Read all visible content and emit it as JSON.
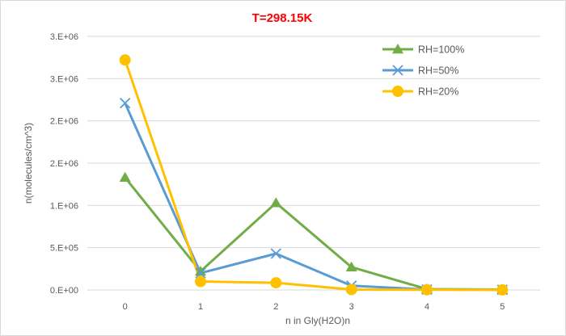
{
  "chart_data": {
    "type": "line",
    "title": "T=298.15K",
    "xlabel": "n in Gly(H2O)n",
    "ylabel": "n(molecules/cm^3)",
    "x": [
      0,
      1,
      2,
      3,
      4,
      5
    ],
    "xlim": [
      -0.5,
      5.5
    ],
    "ylim": [
      0,
      3000000
    ],
    "ytick_values": [
      0,
      500000,
      1000000,
      1500000,
      2000000,
      2500000,
      3000000
    ],
    "ytick_labels": [
      "0.E+00",
      "5.E+05",
      "1.E+06",
      "2.E+06",
      "2.E+06",
      "3.E+06",
      "3.E+06"
    ],
    "grid": true,
    "legend_position": "top-right",
    "series": [
      {
        "name": "RH=100%",
        "color": "#70ad47",
        "marker": "triangle",
        "values": [
          1330000,
          220000,
          1030000,
          270000,
          10000,
          5000
        ]
      },
      {
        "name": "RH=50%",
        "color": "#5b9bd5",
        "marker": "x",
        "values": [
          2210000,
          200000,
          430000,
          50000,
          5000,
          2000
        ]
      },
      {
        "name": "RH=20%",
        "color": "#ffc000",
        "marker": "circle",
        "values": [
          2720000,
          100000,
          85000,
          5000,
          2000,
          1000
        ]
      }
    ]
  }
}
